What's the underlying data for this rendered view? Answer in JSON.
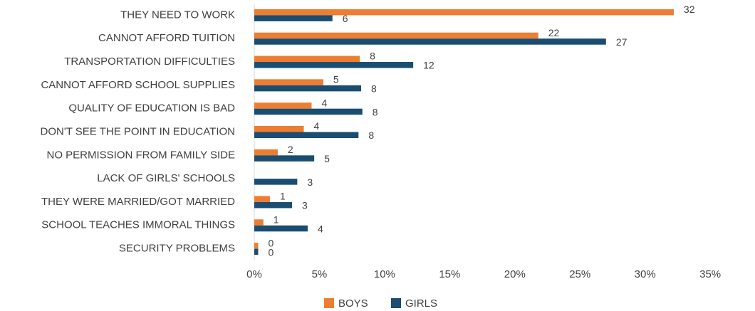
{
  "chart_data": {
    "type": "hbar",
    "categories": [
      "THEY NEED TO WORK",
      "CANNOT AFFORD TUITION",
      "TRANSPORTATION DIFFICULTIES",
      "CANNOT AFFORD SCHOOL SUPPLIES",
      "QUALITY OF EDUCATION IS BAD",
      "DON'T SEE THE POINT IN EDUCATION",
      "NO PERMISSION FROM FAMILY SIDE",
      "LACK OF GIRLS' SCHOOLS",
      "THEY WERE MARRIED/GOT MARRIED",
      "SCHOOL TEACHES IMMORAL THINGS",
      "SECURITY PROBLEMS"
    ],
    "series": [
      {
        "name": "BOYS",
        "color": "#ed7d31",
        "values": [
          32.2,
          21.8,
          8.1,
          5.3,
          4.4,
          3.8,
          1.8,
          null,
          1.2,
          0.7,
          0.3
        ],
        "value_labels": [
          "32",
          "22",
          "8",
          "5",
          "4",
          "4",
          "2",
          null,
          "1",
          "1",
          "0"
        ]
      },
      {
        "name": "GIRLS",
        "color": "#1a4d72",
        "values": [
          6.0,
          27.0,
          12.2,
          8.2,
          8.3,
          8.0,
          4.6,
          3.3,
          2.9,
          4.1,
          0.3
        ],
        "value_labels": [
          "6",
          "27",
          "12",
          "8",
          "8",
          "8",
          "5",
          "3",
          "3",
          "4",
          "0"
        ]
      }
    ],
    "xlim": [
      0,
      38
    ],
    "xticks": [
      {
        "value": 0,
        "label": "0%"
      },
      {
        "value": 5,
        "label": "5%"
      },
      {
        "value": 10,
        "label": "10%"
      },
      {
        "value": 15,
        "label": "15%"
      },
      {
        "value": 20,
        "label": "20%"
      },
      {
        "value": 25,
        "label": "25%"
      },
      {
        "value": 30,
        "label": "30%"
      },
      {
        "value": 35,
        "label": "35%"
      }
    ],
    "grid": false,
    "legend": "bottom"
  }
}
